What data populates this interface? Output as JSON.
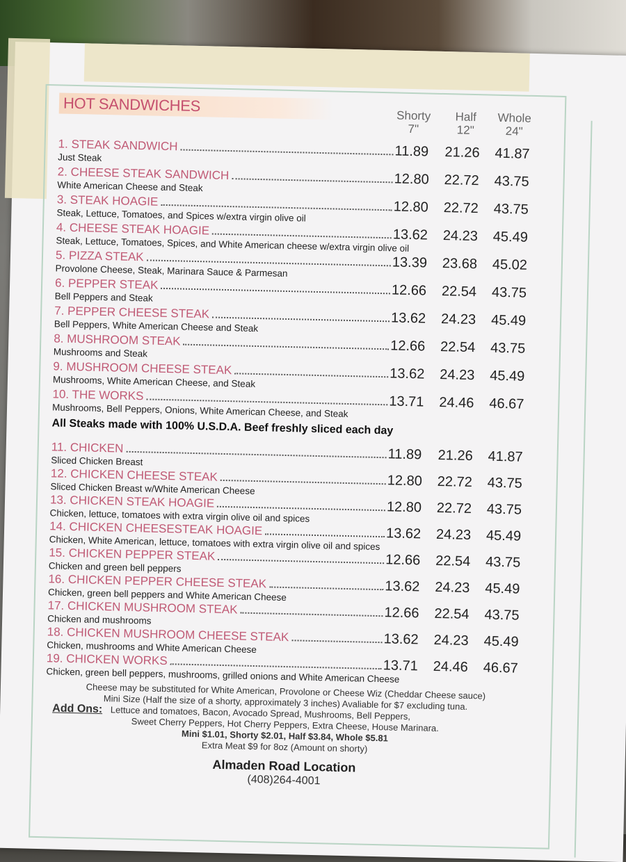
{
  "section_title": "HOT SANDWICHES",
  "sizes": [
    {
      "name": "Shorty",
      "length": "7\""
    },
    {
      "name": "Half",
      "length": "12\""
    },
    {
      "name": "Whole",
      "length": "24\""
    }
  ],
  "steaks": [
    {
      "name": "1. STEAK SANDWICH",
      "desc": "Just Steak",
      "prices": [
        "11.89",
        "21.26",
        "41.87"
      ]
    },
    {
      "name": "2. CHEESE STEAK SANDWICH",
      "desc": "White American Cheese and Steak",
      "prices": [
        "12.80",
        "22.72",
        "43.75"
      ]
    },
    {
      "name": "3. STEAK HOAGIE",
      "desc": "Steak, Lettuce, Tomatoes, and Spices w/extra virgin olive oil",
      "prices": [
        "12.80",
        "22.72",
        "43.75"
      ]
    },
    {
      "name": "4. CHEESE STEAK HOAGIE",
      "desc": "Steak, Lettuce, Tomatoes, Spices, and White American cheese w/extra virgin olive oil",
      "prices": [
        "13.62",
        "24.23",
        "45.49"
      ]
    },
    {
      "name": "5. PIZZA STEAK",
      "desc": "Provolone Cheese, Steak, Marinara Sauce & Parmesan",
      "prices": [
        "13.39",
        "23.68",
        "45.02"
      ]
    },
    {
      "name": "6. PEPPER STEAK",
      "desc": "Bell Peppers and Steak",
      "prices": [
        "12.66",
        "22.54",
        "43.75"
      ]
    },
    {
      "name": "7. PEPPER CHEESE STEAK",
      "desc": "Bell Peppers, White American Cheese and Steak",
      "prices": [
        "13.62",
        "24.23",
        "45.49"
      ]
    },
    {
      "name": "8. MUSHROOM STEAK",
      "desc": "Mushrooms and Steak",
      "prices": [
        "12.66",
        "22.54",
        "43.75"
      ]
    },
    {
      "name": "9. MUSHROOM CHEESE STEAK",
      "desc": "Mushrooms, White American Cheese, and Steak",
      "prices": [
        "13.62",
        "24.23",
        "45.49"
      ]
    },
    {
      "name": "10. THE WORKS",
      "desc": "Mushrooms, Bell Peppers, Onions, White American Cheese, and Steak",
      "prices": [
        "13.71",
        "24.46",
        "46.67"
      ]
    }
  ],
  "beef_note": "All Steaks made with 100% U.S.D.A. Beef freshly sliced each day",
  "chicken": [
    {
      "name": "11. CHICKEN",
      "desc": "Sliced Chicken Breast",
      "prices": [
        "11.89",
        "21.26",
        "41.87"
      ]
    },
    {
      "name": "12. CHICKEN CHEESE STEAK",
      "desc": "Sliced Chicken Breast w/White American Cheese",
      "prices": [
        "12.80",
        "22.72",
        "43.75"
      ]
    },
    {
      "name": "13. CHICKEN STEAK HOAGIE",
      "desc": "Chicken, lettuce, tomatoes with extra virgin olive oil and spices",
      "prices": [
        "12.80",
        "22.72",
        "43.75"
      ]
    },
    {
      "name": "14. CHICKEN CHEESESTEAK HOAGIE",
      "desc": "Chicken, White American, lettuce, tomatoes with extra virgin olive oil and spices",
      "prices": [
        "13.62",
        "24.23",
        "45.49"
      ]
    },
    {
      "name": "15. CHICKEN PEPPER STEAK",
      "desc": "Chicken and green bell peppers",
      "prices": [
        "12.66",
        "22.54",
        "43.75"
      ]
    },
    {
      "name": "16. CHICKEN PEPPER CHEESE STEAK",
      "desc": "Chicken, green bell peppers and White American Cheese",
      "prices": [
        "13.62",
        "24.23",
        "45.49"
      ]
    },
    {
      "name": "17. CHICKEN MUSHROOM STEAK",
      "desc": "Chicken and mushrooms",
      "prices": [
        "12.66",
        "22.54",
        "43.75"
      ]
    },
    {
      "name": "18. CHICKEN MUSHROOM CHEESE STEAK",
      "desc": "Chicken, mushrooms and White American Cheese",
      "prices": [
        "13.62",
        "24.23",
        "45.49"
      ]
    },
    {
      "name": "19. CHICKEN WORKS",
      "desc": "Chicken, green bell peppers, mushrooms, grilled onions and White American Cheese",
      "prices": [
        "13.71",
        "24.46",
        "46.67"
      ]
    }
  ],
  "footer": {
    "cheese_note": "Cheese may be substituted for White American, Provolone or Cheese Wiz (Cheddar Cheese sauce)",
    "mini_note": "Mini Size (Half the size of a shorty, approximately 3 inches) Avaliable for $7 excluding tuna.",
    "addons_label": "Add Ons:",
    "addons_line1": "Lettuce and tomatoes, Bacon, Avocado Spread, Mushrooms, Bell Peppers,",
    "addons_line2": "Sweet Cherry Peppers, Hot Cherry Peppers, Extra Cheese, House Marinara.",
    "addons_prices": "Mini $1.01, Shorty $2.01, Half $3.84, Whole $5.81",
    "extra_meat": "Extra Meat $9 for 8oz (Amount on shorty)",
    "location": "Almaden Road Location",
    "phone": "(408)264-4001"
  },
  "colors": {
    "item_name": "#c05a75",
    "title_band": "#f7d9c2",
    "frame": "#b9d4c4"
  }
}
